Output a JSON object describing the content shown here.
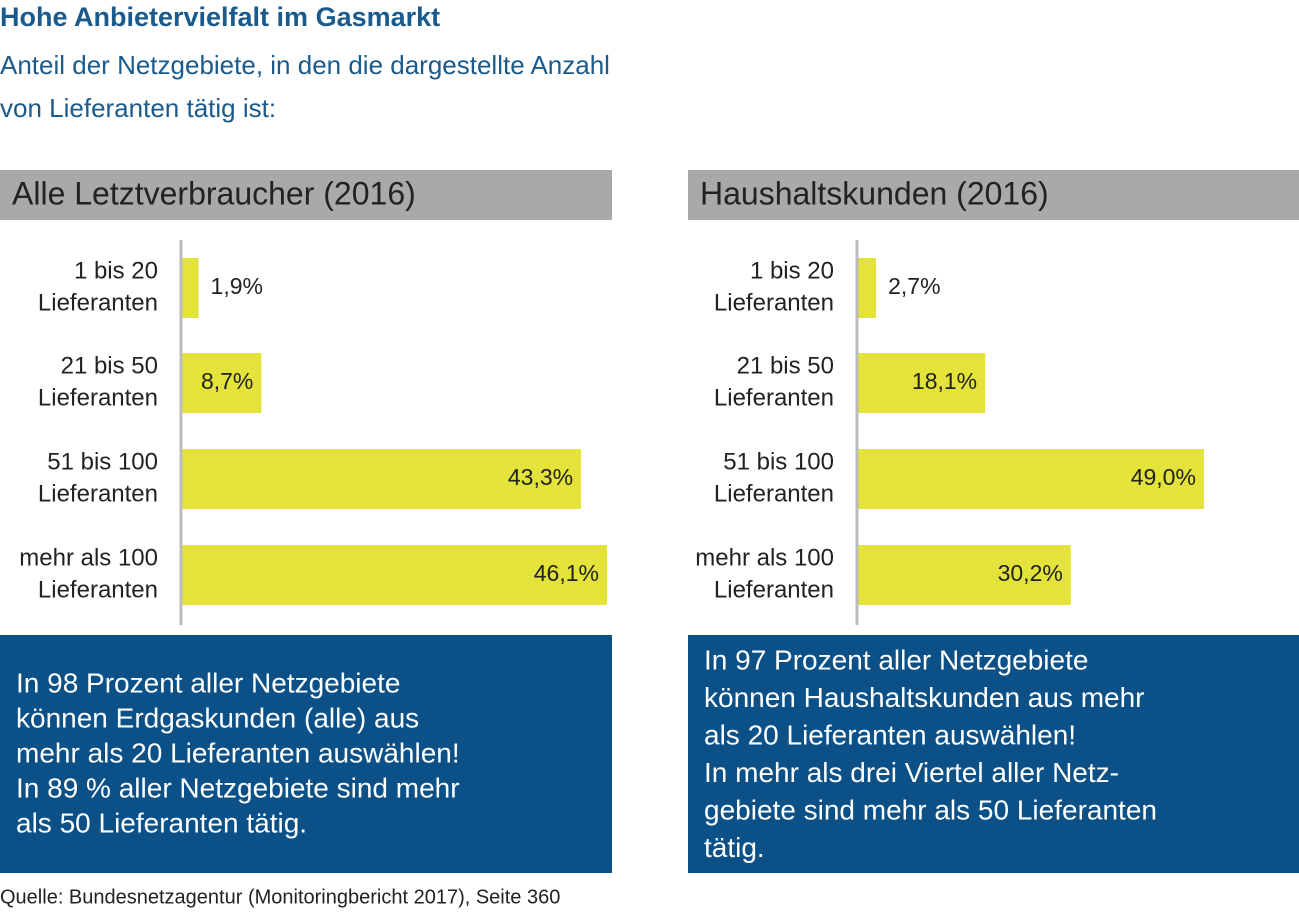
{
  "title": "Hohe Anbietervielfalt im Gasmarkt",
  "subtitle": [
    "Anteil der Netzgebiete, in den die dargestellte Anzahl",
    "von Lieferanten tätig ist:"
  ],
  "chart_data": [
    {
      "type": "bar",
      "orientation": "horizontal",
      "title": "Alle Letztverbraucher (2016)",
      "categories": [
        [
          "1 bis 20",
          "Lieferanten"
        ],
        [
          "21 bis 50",
          "Lieferanten"
        ],
        [
          "51 bis 100",
          "Lieferanten"
        ],
        [
          "mehr als 100",
          "Lieferanten"
        ]
      ],
      "values": [
        1.9,
        8.7,
        43.3,
        46.1
      ],
      "value_labels": [
        "1,9%",
        "8,7%",
        "43,3%",
        "46,1%"
      ],
      "color": "#e3e33c",
      "xlim": [
        0,
        50
      ],
      "note": [
        "In 98 Prozent aller Netzgebiete",
        "können Erdgaskunden (alle) aus",
        "mehr als 20 Lieferanten auswählen!",
        "In 89 % aller Netzgebiete sind mehr",
        "als 50 Lieferanten tätig."
      ]
    },
    {
      "type": "bar",
      "orientation": "horizontal",
      "title": "Haushaltskunden (2016)",
      "categories": [
        [
          "1 bis 20",
          "Lieferanten"
        ],
        [
          "21 bis 50",
          "Lieferanten"
        ],
        [
          "51 bis 100",
          "Lieferanten"
        ],
        [
          "mehr als 100",
          "Lieferanten"
        ]
      ],
      "values": [
        2.7,
        18.1,
        49.0,
        30.2
      ],
      "value_labels": [
        "2,7%",
        "18,1%",
        "49,0%",
        "30,2%"
      ],
      "color": "#e3e33c",
      "xlim": [
        0,
        50
      ],
      "note": [
        "In 97 Prozent aller Netzgebiete",
        "können Haushaltskunden aus mehr",
        "als 20 Lieferanten auswählen!",
        "In mehr als drei Viertel aller Netz-",
        "gebiete sind mehr als 50 Lieferanten",
        "tätig."
      ]
    }
  ],
  "source": "Quelle: Bundesnetzagentur (Monitoringbericht 2017), Seite 360"
}
